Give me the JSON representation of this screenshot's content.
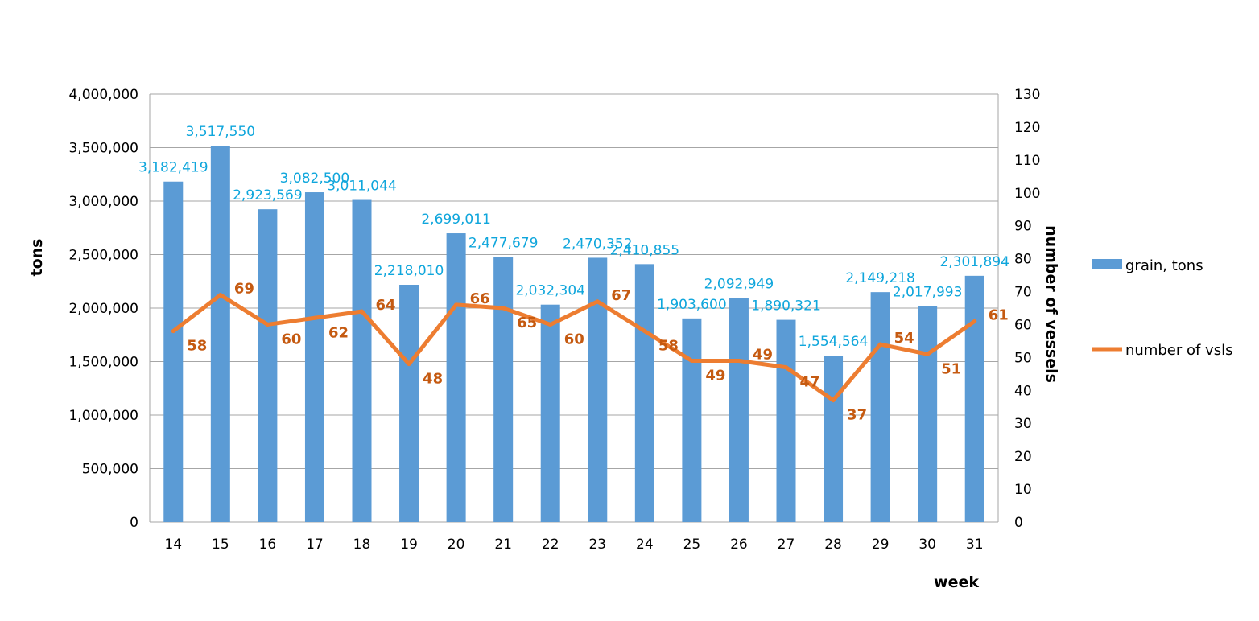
{
  "colors": {
    "bar": "#5B9BD5",
    "line": "#ED7D31",
    "bar_label": "#0FA6DC",
    "line_label": "#C55A11",
    "grid": "#A6A6A6"
  },
  "chart_data": {
    "type": "bar+line",
    "categories": [
      "14",
      "15",
      "16",
      "17",
      "18",
      "19",
      "20",
      "21",
      "22",
      "23",
      "24",
      "25",
      "26",
      "27",
      "28",
      "29",
      "30",
      "31"
    ],
    "series": [
      {
        "name": "grain, tons",
        "type": "bar",
        "axis": "left",
        "values": [
          3182419,
          3517550,
          2923569,
          3082500,
          3011044,
          2218010,
          2699011,
          2477679,
          2032304,
          2470352,
          2410855,
          1903600,
          2092949,
          1890321,
          1554564,
          2149218,
          2017993,
          2301894
        ],
        "labels": [
          "3,182,419",
          "3,517,550",
          "2,923,569",
          "3,082,500",
          "3,011,044",
          "2,218,010",
          "2,699,011",
          "2,477,679",
          "2,032,304",
          "2,470,352",
          "2,410,855",
          "1,903,600",
          "2,092,949",
          "1,890,321",
          "1,554,564",
          "2,149,218",
          "2,017,993",
          "2,301,894"
        ]
      },
      {
        "name": "number of vsls",
        "type": "line",
        "axis": "right",
        "values": [
          58,
          69,
          60,
          62,
          64,
          48,
          66,
          65,
          60,
          67,
          58,
          49,
          49,
          47,
          37,
          54,
          51,
          61
        ],
        "labels": [
          "58",
          "69",
          "60",
          "62",
          "64",
          "48",
          "66",
          "65",
          "60",
          "67",
          "58",
          "49",
          "49",
          "47",
          "37",
          "54",
          "51",
          "61"
        ]
      }
    ],
    "xlabel": "week",
    "ylabel_left": "tons",
    "ylabel_right": "number of vessels",
    "ylim_left": [
      0,
      4000000
    ],
    "ylim_right": [
      0,
      130
    ],
    "yticks_left": [
      "0",
      "500,000",
      "1,000,000",
      "1,500,000",
      "2,000,000",
      "2,500,000",
      "3,000,000",
      "3,500,000",
      "4,000,000"
    ],
    "yticks_right": [
      "0",
      "10",
      "20",
      "30",
      "40",
      "50",
      "60",
      "70",
      "80",
      "90",
      "100",
      "110",
      "120",
      "130"
    ],
    "grid": true,
    "legend_position": "right"
  }
}
